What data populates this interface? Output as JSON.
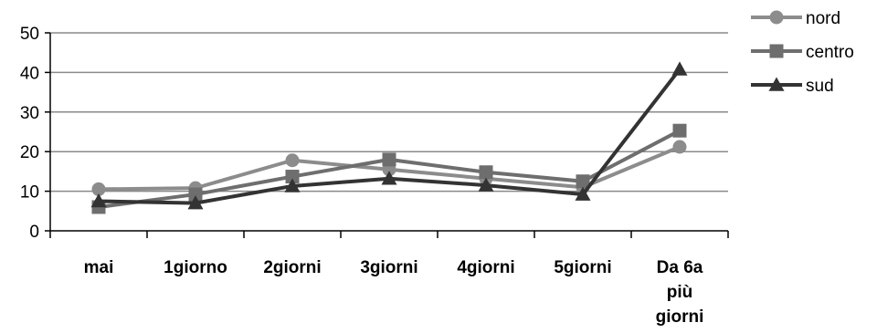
{
  "chart_data": {
    "type": "line",
    "title": "",
    "xlabel": "",
    "ylabel": "",
    "categories": [
      "mai",
      "1giorno",
      "2giorni",
      "3giorni",
      "4giorni",
      "5giorni",
      "Da 6a più giorni"
    ],
    "category_lines": [
      [
        "mai"
      ],
      [
        "1giorno"
      ],
      [
        "2giorni"
      ],
      [
        "3giorni"
      ],
      [
        "4giorni"
      ],
      [
        "5giorni"
      ],
      [
        "Da 6a",
        "più",
        "giorni"
      ]
    ],
    "ylim": [
      0,
      50
    ],
    "yticks": [
      "0",
      "10",
      "20",
      "30",
      "40",
      "50"
    ],
    "grid": true,
    "legend_position": "top-right",
    "series": [
      {
        "name": "nord",
        "marker": "circle",
        "color": "#8c8c8c",
        "values": [
          10.5,
          10.8,
          17.8,
          15.5,
          13.2,
          11.0,
          21.2
        ]
      },
      {
        "name": "centro",
        "marker": "square",
        "color": "#6e6e6e",
        "values": [
          6.0,
          9.2,
          13.7,
          18.0,
          14.8,
          12.5,
          25.3
        ]
      },
      {
        "name": "sud",
        "marker": "triangle",
        "color": "#333333",
        "values": [
          7.5,
          7.0,
          11.3,
          13.2,
          11.5,
          9.2,
          40.8
        ]
      }
    ]
  }
}
